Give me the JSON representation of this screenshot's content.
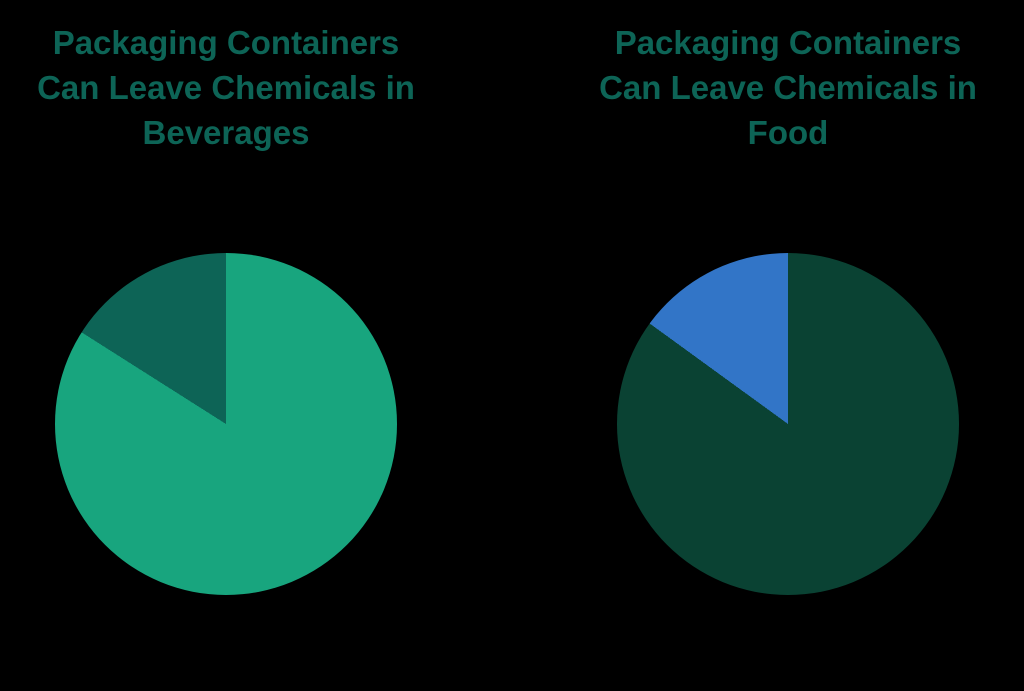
{
  "page": {
    "background_color": "#000000"
  },
  "chart_data": [
    {
      "type": "pie",
      "title": "Packaging Containers Can Leave Chemicals in Beverages",
      "title_lines": [
        "Packaging Containers",
        "Can Leave Chemicals in",
        "Beverages"
      ],
      "title_color": "#0D6456",
      "values_pct": [
        84,
        16
      ],
      "colors": [
        "#18A57E",
        "#0D6456"
      ],
      "start_angle_deg": 0,
      "direction": "clockwise",
      "data_labels": "none",
      "legend": "none"
    },
    {
      "type": "pie",
      "title": "Packaging Containers Can Leave Chemicals in Food",
      "title_lines": [
        "Packaging Containers",
        "Can Leave Chemicals in",
        "Food"
      ],
      "title_color": "#0D6456",
      "values_pct": [
        85,
        15
      ],
      "colors": [
        "#0A4233",
        "#3275C7"
      ],
      "start_angle_deg": 0,
      "direction": "clockwise",
      "data_labels": "none",
      "legend": "none"
    }
  ]
}
